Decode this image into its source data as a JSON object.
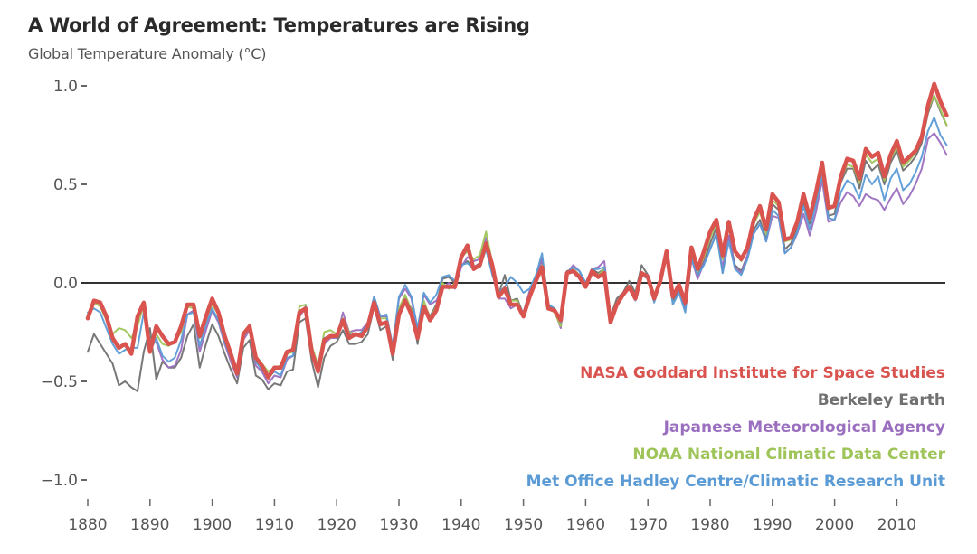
{
  "chart_data": {
    "type": "line",
    "title": "A World of Agreement: Temperatures are Rising",
    "subtitle": "Global Temperature Anomaly (°C)",
    "xlabel": "",
    "ylabel": "Global Temperature Anomaly (°C)",
    "xlim": [
      1880,
      2018
    ],
    "ylim": [
      -1.0,
      1.0
    ],
    "yticks": [
      1.0,
      0.5,
      0.0,
      -0.5,
      -1.0
    ],
    "ytick_labels": [
      "1.0",
      "0.5",
      "0.0",
      "−0.5",
      "−1.0"
    ],
    "xticks": [
      1880,
      1890,
      1900,
      1910,
      1920,
      1930,
      1940,
      1950,
      1960,
      1970,
      1980,
      1990,
      2000,
      2010
    ],
    "xtick_labels": [
      "1880",
      "1890",
      "1900",
      "1910",
      "1920",
      "1930",
      "1940",
      "1950",
      "1960",
      "1970",
      "1980",
      "1990",
      "2000",
      "2010"
    ],
    "zero_line": true,
    "grid": false,
    "legend_position": "bottom-right",
    "x_start": 1880,
    "series": [
      {
        "name": "NASA Goddard Institute for Space Studies",
        "color": "#d9534f",
        "values": [
          -0.18,
          -0.09,
          -0.1,
          -0.17,
          -0.28,
          -0.33,
          -0.31,
          -0.36,
          -0.17,
          -0.1,
          -0.35,
          -0.22,
          -0.27,
          -0.31,
          -0.3,
          -0.22,
          -0.11,
          -0.11,
          -0.27,
          -0.17,
          -0.08,
          -0.15,
          -0.27,
          -0.36,
          -0.46,
          -0.26,
          -0.22,
          -0.38,
          -0.42,
          -0.48,
          -0.43,
          -0.43,
          -0.35,
          -0.34,
          -0.15,
          -0.13,
          -0.35,
          -0.45,
          -0.29,
          -0.27,
          -0.27,
          -0.19,
          -0.28,
          -0.26,
          -0.27,
          -0.22,
          -0.1,
          -0.21,
          -0.2,
          -0.36,
          -0.16,
          -0.09,
          -0.16,
          -0.28,
          -0.12,
          -0.19,
          -0.14,
          -0.02,
          -0.02,
          -0.02,
          0.13,
          0.19,
          0.07,
          0.09,
          0.2,
          0.09,
          -0.07,
          -0.03,
          -0.11,
          -0.11,
          -0.17,
          -0.07,
          0.01,
          0.08,
          -0.13,
          -0.14,
          -0.19,
          0.05,
          0.06,
          0.03,
          -0.02,
          0.06,
          0.03,
          0.05,
          -0.2,
          -0.11,
          -0.06,
          -0.02,
          -0.08,
          0.05,
          0.03,
          -0.08,
          0.01,
          0.16,
          -0.07,
          -0.01,
          -0.1,
          0.18,
          0.07,
          0.16,
          0.26,
          0.32,
          0.14,
          0.31,
          0.16,
          0.12,
          0.18,
          0.32,
          0.39,
          0.27,
          0.45,
          0.41,
          0.22,
          0.23,
          0.31,
          0.45,
          0.33,
          0.46,
          0.61,
          0.38,
          0.39,
          0.54,
          0.63,
          0.62,
          0.53,
          0.68,
          0.64,
          0.66,
          0.54,
          0.65,
          0.72,
          0.61,
          0.64,
          0.67,
          0.74,
          0.9,
          1.01,
          0.92,
          0.85
        ]
      },
      {
        "name": "Berkeley Earth",
        "color": "#707070",
        "values": [
          -0.35,
          -0.26,
          -0.31,
          -0.36,
          -0.41,
          -0.52,
          -0.5,
          -0.53,
          -0.55,
          -0.35,
          -0.23,
          -0.49,
          -0.4,
          -0.43,
          -0.43,
          -0.38,
          -0.27,
          -0.21,
          -0.43,
          -0.31,
          -0.21,
          -0.27,
          -0.36,
          -0.44,
          -0.51,
          -0.33,
          -0.29,
          -0.47,
          -0.49,
          -0.54,
          -0.51,
          -0.52,
          -0.45,
          -0.44,
          -0.2,
          -0.18,
          -0.4,
          -0.53,
          -0.38,
          -0.32,
          -0.3,
          -0.24,
          -0.31,
          -0.31,
          -0.3,
          -0.26,
          -0.12,
          -0.24,
          -0.22,
          -0.39,
          -0.14,
          -0.08,
          -0.13,
          -0.31,
          -0.11,
          -0.17,
          -0.11,
          0.02,
          0.03,
          0.0,
          0.09,
          0.11,
          0.08,
          0.1,
          0.2,
          0.09,
          -0.06,
          0.04,
          -0.09,
          -0.08,
          -0.16,
          -0.05,
          0.02,
          0.12,
          -0.11,
          -0.13,
          -0.2,
          0.06,
          0.07,
          0.04,
          -0.01,
          0.07,
          0.05,
          0.07,
          -0.17,
          -0.08,
          -0.05,
          0.01,
          -0.05,
          0.09,
          0.04,
          -0.06,
          0.02,
          0.15,
          -0.09,
          -0.04,
          -0.13,
          0.13,
          0.04,
          0.11,
          0.2,
          0.28,
          0.05,
          0.24,
          0.09,
          0.06,
          0.14,
          0.27,
          0.32,
          0.22,
          0.4,
          0.37,
          0.17,
          0.2,
          0.28,
          0.41,
          0.3,
          0.42,
          0.58,
          0.34,
          0.35,
          0.51,
          0.58,
          0.58,
          0.48,
          0.62,
          0.57,
          0.6,
          0.5,
          0.61,
          0.67,
          0.57,
          0.6,
          0.64,
          0.71,
          0.86,
          0.95,
          0.87,
          0.8
        ]
      },
      {
        "name": "Japanese Meteorological Agency",
        "color": "#9b6fbf",
        "values": [
          null,
          null,
          null,
          null,
          null,
          null,
          null,
          null,
          null,
          null,
          null,
          -0.3,
          -0.39,
          -0.43,
          -0.42,
          -0.34,
          -0.16,
          -0.14,
          -0.35,
          -0.24,
          -0.14,
          -0.2,
          -0.31,
          -0.4,
          -0.48,
          -0.29,
          -0.24,
          -0.42,
          -0.45,
          -0.51,
          -0.47,
          -0.48,
          -0.39,
          -0.37,
          -0.17,
          -0.13,
          -0.33,
          -0.44,
          -0.31,
          -0.28,
          -0.28,
          -0.15,
          -0.25,
          -0.24,
          -0.24,
          -0.2,
          -0.07,
          -0.17,
          -0.17,
          -0.32,
          -0.08,
          -0.03,
          -0.08,
          -0.24,
          -0.06,
          -0.11,
          -0.09,
          -0.03,
          0.0,
          -0.03,
          0.08,
          0.13,
          0.11,
          0.12,
          0.23,
          0.05,
          -0.08,
          -0.08,
          -0.13,
          -0.11,
          -0.15,
          -0.04,
          0.01,
          0.12,
          -0.12,
          -0.14,
          -0.23,
          0.05,
          0.09,
          0.06,
          0.0,
          0.07,
          0.08,
          0.11,
          -0.17,
          -0.12,
          -0.07,
          -0.02,
          -0.07,
          0.05,
          0.04,
          -0.07,
          0.0,
          0.13,
          -0.08,
          -0.03,
          -0.12,
          0.12,
          0.02,
          0.1,
          0.17,
          0.25,
          0.08,
          0.24,
          0.08,
          0.05,
          0.14,
          0.25,
          0.3,
          0.21,
          0.34,
          0.33,
          0.15,
          0.18,
          0.25,
          0.35,
          0.24,
          0.36,
          0.52,
          0.31,
          0.32,
          0.41,
          0.46,
          0.44,
          0.39,
          0.45,
          0.43,
          0.42,
          0.37,
          0.43,
          0.48,
          0.4,
          0.44,
          0.5,
          0.58,
          0.73,
          0.76,
          0.71,
          0.65
        ]
      },
      {
        "name": "NOAA National Climatic Data Center",
        "color": "#9fc55a",
        "values": [
          -0.16,
          -0.1,
          -0.12,
          -0.19,
          -0.26,
          -0.23,
          -0.24,
          -0.28,
          -0.22,
          -0.11,
          -0.33,
          -0.26,
          -0.31,
          -0.32,
          -0.3,
          -0.25,
          -0.12,
          -0.13,
          -0.28,
          -0.18,
          -0.11,
          -0.16,
          -0.28,
          -0.35,
          -0.45,
          -0.28,
          -0.21,
          -0.37,
          -0.41,
          -0.45,
          -0.43,
          -0.42,
          -0.36,
          -0.35,
          -0.12,
          -0.11,
          -0.32,
          -0.42,
          -0.25,
          -0.24,
          -0.26,
          -0.18,
          -0.25,
          -0.26,
          -0.27,
          -0.22,
          -0.08,
          -0.18,
          -0.18,
          -0.33,
          -0.13,
          -0.06,
          -0.14,
          -0.27,
          -0.09,
          -0.18,
          -0.12,
          0.0,
          -0.03,
          0.0,
          0.13,
          0.16,
          0.12,
          0.14,
          0.26,
          0.1,
          -0.04,
          -0.05,
          -0.09,
          -0.09,
          -0.17,
          -0.07,
          0.0,
          0.09,
          -0.13,
          -0.15,
          -0.22,
          0.05,
          0.07,
          0.04,
          -0.02,
          0.06,
          0.04,
          0.07,
          -0.18,
          -0.12,
          -0.07,
          -0.02,
          -0.07,
          0.05,
          0.03,
          -0.06,
          0.02,
          0.15,
          -0.06,
          -0.02,
          -0.11,
          0.15,
          0.06,
          0.13,
          0.23,
          0.3,
          0.12,
          0.28,
          0.15,
          0.11,
          0.17,
          0.3,
          0.36,
          0.25,
          0.42,
          0.39,
          0.21,
          0.22,
          0.3,
          0.43,
          0.32,
          0.45,
          0.6,
          0.38,
          0.39,
          0.53,
          0.6,
          0.59,
          0.51,
          0.65,
          0.61,
          0.63,
          0.52,
          0.63,
          0.69,
          0.59,
          0.62,
          0.66,
          0.73,
          0.88,
          0.95,
          0.88,
          0.8
        ]
      },
      {
        "name": "Met Office Hadley Centre/Climatic Research Unit",
        "color": "#5b9bd5",
        "values": [
          -0.15,
          -0.13,
          -0.15,
          -0.23,
          -0.31,
          -0.36,
          -0.34,
          -0.33,
          -0.33,
          -0.15,
          -0.35,
          -0.28,
          -0.37,
          -0.4,
          -0.38,
          -0.29,
          -0.16,
          -0.15,
          -0.32,
          -0.21,
          -0.13,
          -0.19,
          -0.3,
          -0.38,
          -0.47,
          -0.28,
          -0.22,
          -0.4,
          -0.44,
          -0.48,
          -0.45,
          -0.47,
          -0.38,
          -0.37,
          -0.16,
          -0.12,
          -0.33,
          -0.46,
          -0.28,
          -0.27,
          -0.28,
          -0.19,
          -0.26,
          -0.27,
          -0.25,
          -0.21,
          -0.07,
          -0.17,
          -0.16,
          -0.32,
          -0.07,
          -0.01,
          -0.07,
          -0.23,
          -0.05,
          -0.1,
          -0.06,
          0.03,
          0.04,
          0.01,
          0.09,
          0.1,
          0.07,
          0.08,
          0.17,
          0.04,
          -0.05,
          -0.02,
          0.03,
          0.0,
          -0.05,
          -0.03,
          0.04,
          0.15,
          -0.11,
          -0.13,
          -0.2,
          0.05,
          0.08,
          0.06,
          0.0,
          0.07,
          0.07,
          0.08,
          -0.18,
          -0.1,
          -0.06,
          -0.02,
          -0.09,
          0.04,
          0.02,
          -0.1,
          0.0,
          0.14,
          -0.11,
          -0.05,
          -0.15,
          0.12,
          0.04,
          0.09,
          0.17,
          0.25,
          0.05,
          0.21,
          0.07,
          0.04,
          0.12,
          0.25,
          0.3,
          0.21,
          0.37,
          0.34,
          0.15,
          0.18,
          0.26,
          0.39,
          0.27,
          0.4,
          0.55,
          0.33,
          0.32,
          0.46,
          0.52,
          0.5,
          0.43,
          0.55,
          0.5,
          0.54,
          0.42,
          0.53,
          0.58,
          0.47,
          0.5,
          0.56,
          0.64,
          0.77,
          0.84,
          0.75,
          0.7
        ]
      }
    ]
  }
}
